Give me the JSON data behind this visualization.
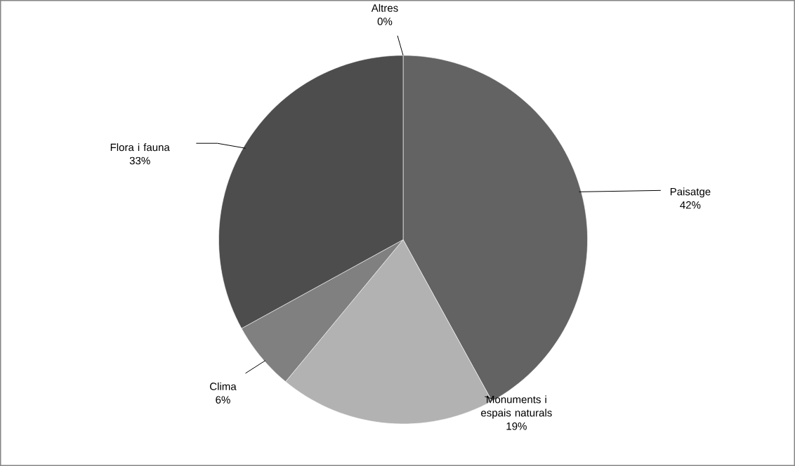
{
  "chart_data": {
    "type": "pie",
    "categories": [
      "Paisatge",
      "Monuments i espais naturals",
      "Clima",
      "Flora i fauna",
      "Altres"
    ],
    "values": [
      42,
      19,
      6,
      33,
      0
    ],
    "value_labels": [
      "42%",
      "19%",
      "6%",
      "33%",
      "0%"
    ],
    "colors": [
      "#636363",
      "#b2b2b2",
      "#808080",
      "#4d4d4d",
      "#969696"
    ]
  }
}
